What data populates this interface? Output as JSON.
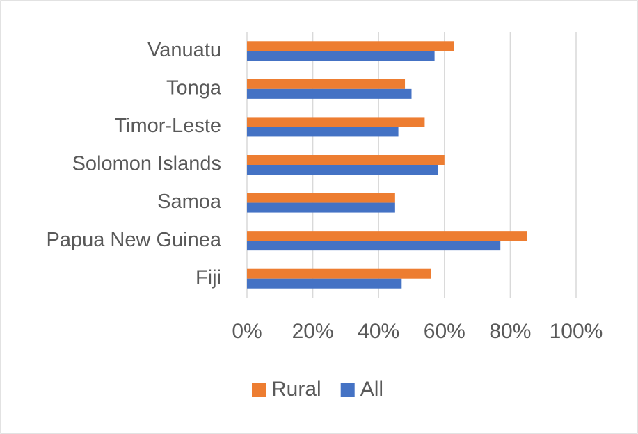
{
  "chart_data": {
    "type": "hbar",
    "categories": [
      "Fiji",
      "Papua New Guinea",
      "Samoa",
      "Solomon Islands",
      "Timor-Leste",
      "Tonga",
      "Vanuatu"
    ],
    "series": [
      {
        "name": "Rural",
        "color": "#ed7d31",
        "values": [
          56,
          85,
          45,
          60,
          54,
          48,
          63
        ]
      },
      {
        "name": "All",
        "color": "#4472c4",
        "values": [
          47,
          77,
          45,
          58,
          46,
          50,
          57
        ]
      }
    ],
    "xlim": [
      0,
      100
    ],
    "xticks": [
      {
        "value": 0,
        "label": "0%"
      },
      {
        "value": 20,
        "label": "20%"
      },
      {
        "value": 40,
        "label": "40%"
      },
      {
        "value": 60,
        "label": "60%"
      },
      {
        "value": 80,
        "label": "80%"
      },
      {
        "value": 100,
        "label": "100%"
      }
    ],
    "grid": true,
    "legend": "bottom"
  }
}
